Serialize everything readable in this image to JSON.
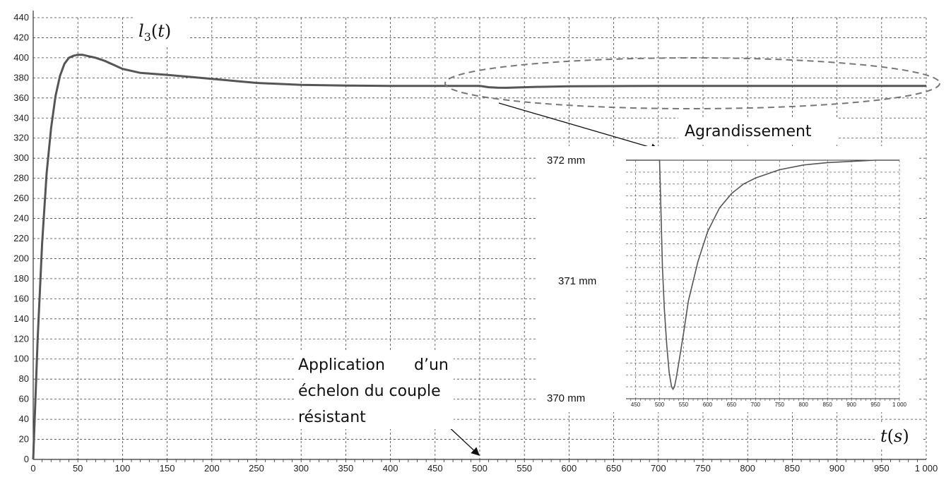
{
  "chart_data": [
    {
      "type": "line",
      "title": "",
      "curve_label": "l3(t)",
      "xlabel": "t(s)",
      "ylabel": "",
      "xlim": [
        0,
        1000
      ],
      "ylim": [
        0,
        440
      ],
      "x_ticks": [
        0,
        50,
        100,
        150,
        200,
        250,
        300,
        350,
        400,
        450,
        500,
        550,
        600,
        650,
        700,
        750,
        800,
        850,
        900,
        950,
        1000
      ],
      "x_tick_labels": [
        "0",
        "50",
        "100",
        "150",
        "200",
        "250",
        "300",
        "350",
        "400",
        "450",
        "500",
        "550",
        "600",
        "650",
        "700",
        "750",
        "800",
        "850",
        "900",
        "950",
        "1 000"
      ],
      "y_ticks": [
        0,
        20,
        40,
        60,
        80,
        100,
        120,
        140,
        160,
        180,
        200,
        220,
        240,
        260,
        280,
        300,
        320,
        340,
        360,
        380,
        400,
        420,
        440
      ],
      "y_tick_labels": [
        "0",
        "20",
        "40",
        "60",
        "80",
        "100",
        "120",
        "140",
        "160",
        "180",
        "200",
        "220",
        "240",
        "260",
        "280",
        "300",
        "320",
        "340",
        "360",
        "380",
        "400",
        "420",
        "440"
      ],
      "grid": true,
      "series": [
        {
          "x": [
            0,
            5,
            10,
            15,
            20,
            25,
            30,
            35,
            40,
            45,
            50,
            55,
            60,
            65,
            70,
            80,
            90,
            100,
            120,
            150,
            200,
            250,
            300,
            350,
            400,
            450,
            500,
            505,
            510,
            520,
            530,
            540,
            560,
            600,
            650,
            700,
            800,
            900,
            1000
          ],
          "values": [
            0,
            120,
            215,
            285,
            330,
            362,
            382,
            394,
            400,
            402,
            403,
            403,
            402,
            401,
            400,
            397,
            393,
            389,
            385,
            383,
            379,
            375,
            373,
            372.3,
            372,
            372,
            372,
            371.4,
            370.7,
            370.2,
            370.1,
            370.4,
            371,
            371.6,
            371.85,
            371.95,
            372,
            372,
            372
          ]
        }
      ]
    },
    {
      "type": "line",
      "title": "",
      "xlim": [
        430,
        1000
      ],
      "ylim": [
        370,
        372
      ],
      "x_ticks": [
        450,
        500,
        550,
        600,
        650,
        700,
        750,
        800,
        850,
        900,
        950,
        1000
      ],
      "x_tick_labels": [
        "450",
        "500",
        "550",
        "600",
        "650",
        "700",
        "750",
        "800",
        "850",
        "900",
        "950",
        "1 000"
      ],
      "y_tick_labels": [
        "372 mm",
        "371 mm",
        "370 mm"
      ],
      "grid": true,
      "series": [
        {
          "x": [
            430,
            450,
            500,
            503,
            506,
            510,
            515,
            520,
            525,
            528,
            531,
            535,
            540,
            550,
            560,
            580,
            600,
            625,
            650,
            675,
            700,
            750,
            800,
            850,
            900,
            950,
            1000
          ],
          "values": [
            372,
            372,
            372,
            371.55,
            371.1,
            370.75,
            370.45,
            370.22,
            370.1,
            370.08,
            370.1,
            370.18,
            370.3,
            370.55,
            370.82,
            371.15,
            371.4,
            371.6,
            371.72,
            371.8,
            371.85,
            371.92,
            371.96,
            371.98,
            371.99,
            372,
            372
          ]
        }
      ]
    }
  ],
  "annotations": {
    "zoom_label": "Agrandissement",
    "step_label_line1": "Application",
    "step_label_line1b": "d’un",
    "step_label_line2": "échelon du couple",
    "step_label_line3": "résistant"
  },
  "colors": {
    "curve": "#555555",
    "grid": "#444444",
    "ellipse": "#777777",
    "arrow": "#111111"
  }
}
